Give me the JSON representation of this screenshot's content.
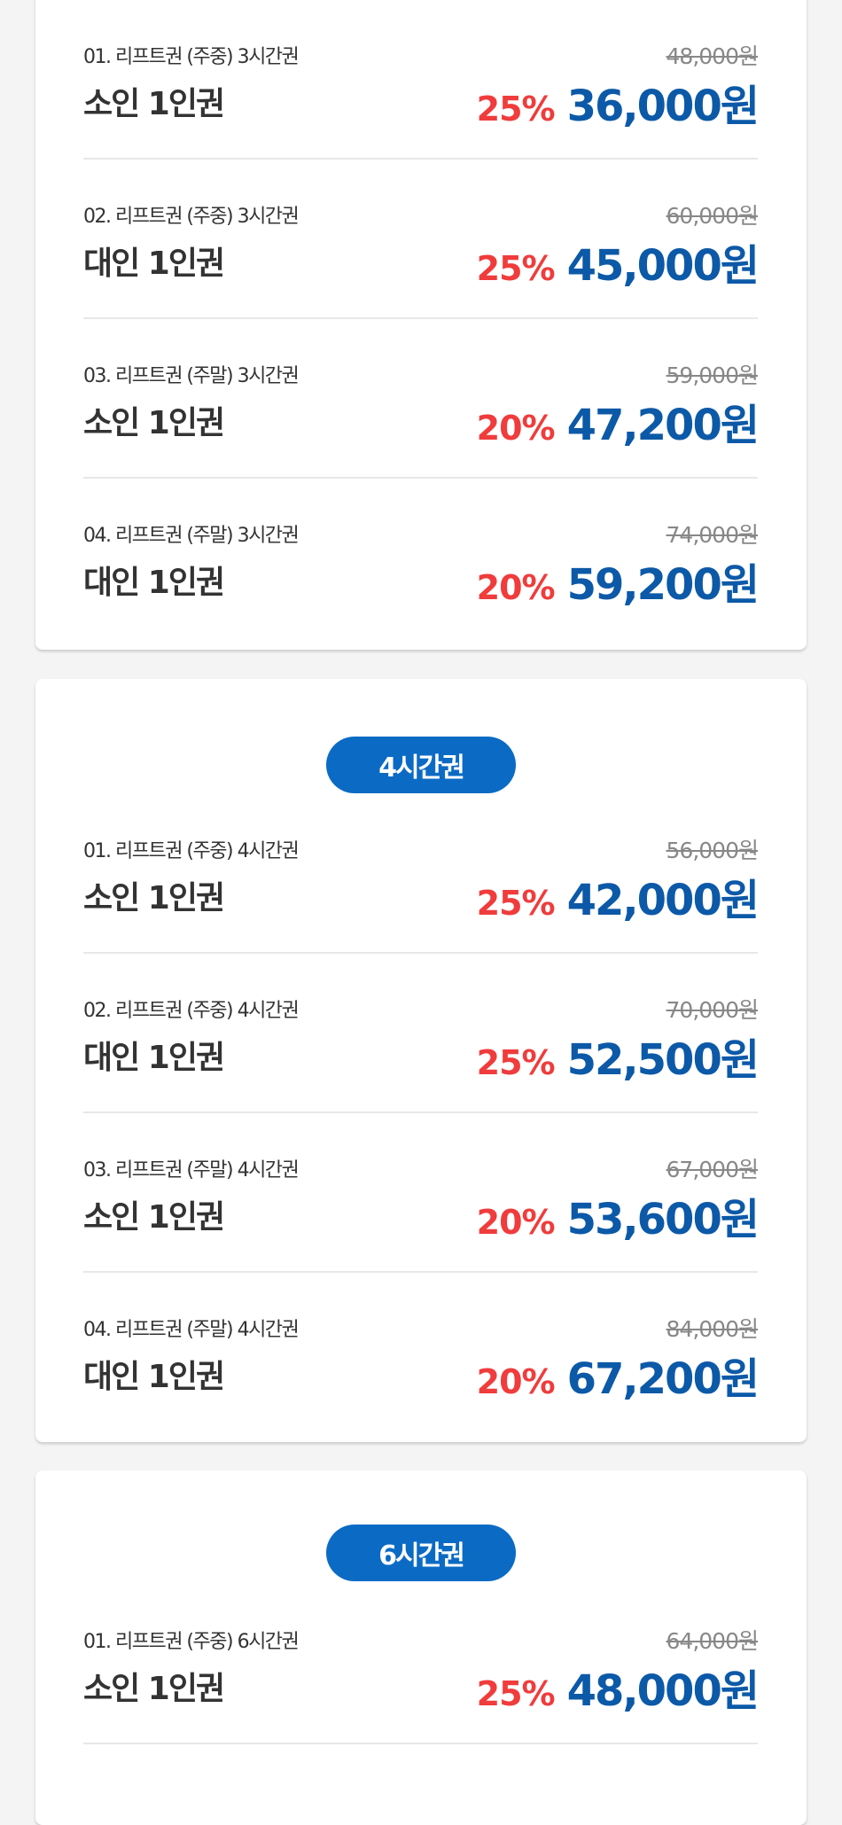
{
  "colors": {
    "accent_blue": "#0b6bc4",
    "price_blue": "#0c59a8",
    "discount_red": "#f03c3c",
    "background": "#f4f4f4"
  },
  "sections": [
    {
      "badge": "",
      "items": [
        {
          "label": "01. 리프트권 (주중)  3시간권",
          "name": "소인 1인권",
          "original": "48,000원",
          "discount": "25%",
          "price": "36,000원"
        },
        {
          "label": "02. 리프트권 (주중)  3시간권",
          "name": "대인 1인권",
          "original": "60,000원",
          "discount": "25%",
          "price": "45,000원"
        },
        {
          "label": "03. 리프트권 (주말) 3시간권",
          "name": "소인 1인권",
          "original": "59,000원",
          "discount": "20%",
          "price": "47,200원"
        },
        {
          "label": "04. 리프트권 (주말) 3시간권",
          "name": "대인 1인권",
          "original": "74,000원",
          "discount": "20%",
          "price": "59,200원"
        }
      ]
    },
    {
      "badge": "4시간권",
      "items": [
        {
          "label": "01. 리프트권 (주중) 4시간권",
          "name": "소인 1인권",
          "original": "56,000원",
          "discount": "25%",
          "price": "42,000원"
        },
        {
          "label": "02. 리프트권 (주중) 4시간권",
          "name": "대인 1인권",
          "original": "70,000원",
          "discount": "25%",
          "price": "52,500원"
        },
        {
          "label": "03. 리프트권 (주말) 4시간권",
          "name": "소인 1인권",
          "original": "67,000원",
          "discount": "20%",
          "price": "53,600원"
        },
        {
          "label": "04. 리프트권 (주말) 4시간권",
          "name": "대인 1인권",
          "original": "84,000원",
          "discount": "20%",
          "price": "67,200원"
        }
      ]
    },
    {
      "badge": "6시간권",
      "items": [
        {
          "label": "01. 리프트권 (주중) 6시간권",
          "name": "소인 1인권",
          "original": "64,000원",
          "discount": "25%",
          "price": "48,000원"
        }
      ]
    }
  ]
}
